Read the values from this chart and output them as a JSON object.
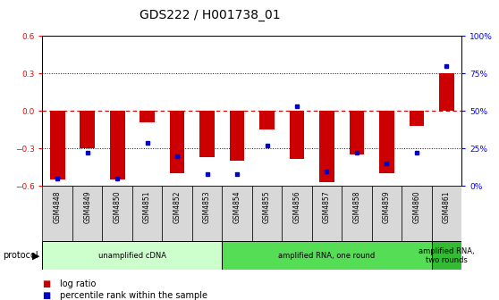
{
  "title": "GDS222 / H001738_01",
  "samples": [
    "GSM4848",
    "GSM4849",
    "GSM4850",
    "GSM4851",
    "GSM4852",
    "GSM4853",
    "GSM4854",
    "GSM4855",
    "GSM4856",
    "GSM4857",
    "GSM4858",
    "GSM4859",
    "GSM4860",
    "GSM4861"
  ],
  "log_ratio": [
    -0.55,
    -0.3,
    -0.55,
    -0.09,
    -0.5,
    -0.37,
    -0.4,
    -0.15,
    -0.38,
    -0.57,
    -0.35,
    -0.5,
    -0.12,
    0.3
  ],
  "percentile": [
    5,
    22,
    5,
    29,
    20,
    8,
    8,
    27,
    53,
    10,
    22,
    15,
    22,
    80
  ],
  "ylim_left": [
    -0.6,
    0.6
  ],
  "ylim_right": [
    0,
    100
  ],
  "bar_color": "#cc0000",
  "dot_color": "#0000cc",
  "zero_line_color": "#cc0000",
  "grid_color": "#111111",
  "protocol_groups": [
    {
      "label": "unamplified cDNA",
      "start": 0,
      "end": 5,
      "color": "#ccffcc"
    },
    {
      "label": "amplified RNA, one round",
      "start": 6,
      "end": 12,
      "color": "#55dd55"
    },
    {
      "label": "amplified RNA,\ntwo rounds",
      "start": 13,
      "end": 13,
      "color": "#33bb33"
    }
  ],
  "legend_items": [
    {
      "label": "log ratio",
      "color": "#cc0000"
    },
    {
      "label": "percentile rank within the sample",
      "color": "#0000cc"
    }
  ],
  "title_fontsize": 10,
  "tick_fontsize": 6.5,
  "label_fontsize": 7.5,
  "bar_width": 0.5
}
